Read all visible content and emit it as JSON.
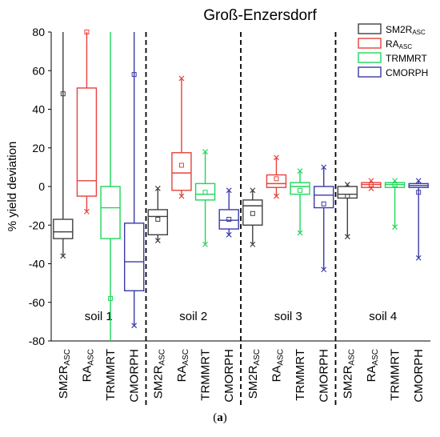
{
  "chart_data": {
    "type": "box",
    "title": "Groß-Enzersdorf",
    "ylabel": "% yield deviation",
    "xlabel": "",
    "ylim": [
      -80,
      80
    ],
    "yticks": [
      80,
      60,
      40,
      20,
      0,
      -20,
      -40,
      -60,
      -80
    ],
    "grid": false,
    "legend_position": "top-right",
    "series": [
      {
        "name": "SM2R",
        "sub": "ASC",
        "color": "#404040"
      },
      {
        "name": "RA",
        "sub": "ASC",
        "color": "#e8413c"
      },
      {
        "name": "TRMMRT",
        "sub": "",
        "color": "#1fd65a"
      },
      {
        "name": "CMORPH",
        "sub": "",
        "color": "#3a3aa8"
      }
    ],
    "groups": [
      {
        "label": "soil 1",
        "boxes": [
          {
            "min": -36,
            "q1": -27,
            "median": -23.5,
            "q3": -17,
            "max": 80,
            "mean": 48
          },
          {
            "min": -13,
            "q1": -5,
            "median": 3,
            "q3": 51,
            "max": 80,
            "mean": 80
          },
          {
            "min": -80,
            "q1": -27,
            "median": -11,
            "q3": 0,
            "max": 80,
            "mean": -58
          },
          {
            "min": -72,
            "q1": -54,
            "median": -39,
            "q3": -19,
            "max": 80,
            "mean": 58
          }
        ]
      },
      {
        "label": "soil 2",
        "boxes": [
          {
            "min": -28,
            "q1": -25,
            "median": -15.5,
            "q3": -12,
            "max": -1,
            "mean": -17
          },
          {
            "min": -5,
            "q1": -2,
            "median": 7,
            "q3": 17.5,
            "max": 56,
            "mean": 11
          },
          {
            "min": -30,
            "q1": -7,
            "median": -4,
            "q3": 1.5,
            "max": 18,
            "mean": -3
          },
          {
            "min": -25,
            "q1": -22,
            "median": -17.5,
            "q3": -12,
            "max": -2,
            "mean": -17
          }
        ]
      },
      {
        "label": "soil 3",
        "boxes": [
          {
            "min": -30,
            "q1": -20,
            "median": -10,
            "q3": -7,
            "max": -2,
            "mean": -14
          },
          {
            "min": -5,
            "q1": -0.5,
            "median": 1.5,
            "q3": 6,
            "max": 15,
            "mean": 4
          },
          {
            "min": -24,
            "q1": -4,
            "median": 0,
            "q3": 2,
            "max": 8,
            "mean": -2
          },
          {
            "min": -43,
            "q1": -11,
            "median": -4.5,
            "q3": 0,
            "max": 10,
            "mean": -9
          }
        ]
      },
      {
        "label": "soil 4",
        "boxes": [
          {
            "min": -26,
            "q1": -6,
            "median": -4,
            "q3": 0,
            "max": 1,
            "mean": -5
          },
          {
            "min": -1,
            "q1": -0.5,
            "median": 1,
            "q3": 2,
            "max": 3,
            "mean": 1
          },
          {
            "min": -21,
            "q1": -0.5,
            "median": 1,
            "q3": 2,
            "max": 3,
            "mean": 1
          },
          {
            "min": -37,
            "q1": -0.5,
            "median": 0.5,
            "q3": 1.5,
            "max": 3,
            "mean": -3
          }
        ]
      }
    ]
  },
  "caption": {
    "prefix": "(",
    "letter": "a",
    "suffix": ")"
  }
}
